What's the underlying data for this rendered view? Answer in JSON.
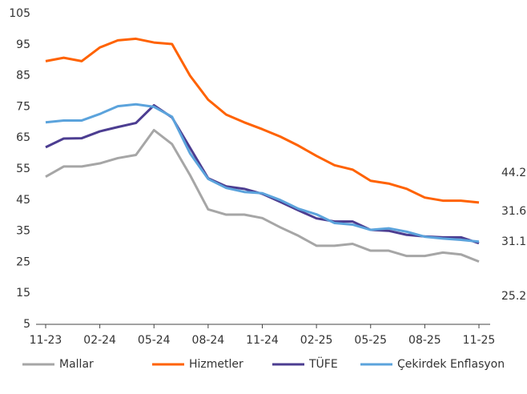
{
  "chart_data": {
    "type": "line",
    "categories": [
      "11-23",
      null,
      null,
      "02-24",
      null,
      null,
      "05-24",
      null,
      null,
      "08-24",
      null,
      null,
      "11-24",
      null,
      null,
      "02-25",
      null,
      null,
      "05-25",
      null,
      null,
      "08-25",
      null,
      null,
      "11-25"
    ],
    "series": [
      {
        "name": "Mallar",
        "color": "#a6a6a6",
        "values": [
          52.5,
          55.8,
          55.8,
          56.8,
          58.5,
          59.5,
          67.5,
          63,
          53,
          42,
          40.3,
          40.3,
          39.2,
          36.2,
          33.5,
          30.3,
          30.3,
          30.9,
          28.7,
          28.7,
          27,
          27,
          28.1,
          27.5,
          25.2
        ]
      },
      {
        "name": "Hizmetler",
        "color": "#ff6200",
        "values": [
          89.7,
          90.8,
          89.7,
          94.1,
          96.4,
          96.9,
          95.7,
          95.2,
          85,
          77.3,
          72.5,
          70,
          67.8,
          65.4,
          62.5,
          59.2,
          56.2,
          54.8,
          51.2,
          50.3,
          48.6,
          45.8,
          44.8,
          44.8,
          44.2
        ]
      },
      {
        "name": "TÜFE",
        "color": "#4c3d91",
        "values": [
          62,
          64.8,
          64.9,
          67.1,
          68.5,
          69.8,
          75.5,
          71.6,
          61.8,
          52,
          49.4,
          48.6,
          47,
          44.4,
          41.7,
          39.1,
          38.1,
          38.1,
          35.4,
          35.1,
          33.8,
          33.3,
          33,
          33,
          31.1
        ]
      },
      {
        "name": "Çekirdek Enflasyon",
        "color": "#5ba3dc",
        "values": [
          70,
          70.6,
          70.6,
          72.7,
          75.2,
          75.8,
          75,
          71.8,
          60,
          51.8,
          48.9,
          47.6,
          47.2,
          45,
          42.2,
          40.4,
          37.6,
          37.1,
          35.4,
          35.9,
          34.8,
          33.2,
          32.6,
          32.2,
          31.6
        ]
      }
    ],
    "annotations": [
      "44.2",
      "31.6",
      "31.1",
      "25.2"
    ],
    "ylim": [
      5,
      105
    ],
    "yticks": [
      5,
      15,
      25,
      35,
      45,
      55,
      65,
      75,
      85,
      95,
      105
    ],
    "grid": false,
    "legend": "bottom"
  }
}
